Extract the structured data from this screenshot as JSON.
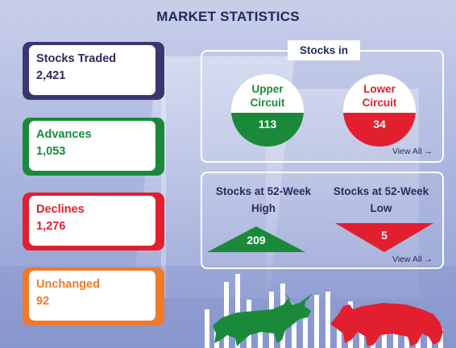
{
  "title": "MARKET STATISTICS",
  "stats": {
    "traded": {
      "label": "Stocks Traded",
      "value": "2,421"
    },
    "advances": {
      "label": "Advances",
      "value": "1,053"
    },
    "declines": {
      "label": "Declines",
      "value": "1,276"
    },
    "unchanged": {
      "label": "Unchanged",
      "value": "92"
    }
  },
  "circuit_panel": {
    "tag": "Stocks in",
    "upper": {
      "label_line1": "Upper",
      "label_line2": "Circuit",
      "value": "113"
    },
    "lower": {
      "label_line1": "Lower",
      "label_line2": "Circuit",
      "value": "34"
    },
    "view_all": "View All →"
  },
  "week52_panel": {
    "high": {
      "label_line1": "Stocks at 52-Week",
      "label_line2": "High",
      "value": "209"
    },
    "low": {
      "label_line1": "Stocks at 52-Week",
      "label_line2": "Low",
      "value": "5"
    },
    "view_all": "View All →"
  },
  "colors": {
    "positive": "#1a8a3a",
    "negative": "#e21f2f",
    "neutral": "#f07a2a",
    "primary": "#3a3770"
  },
  "icons": {
    "bull": "bull-icon",
    "bear": "bear-icon"
  }
}
